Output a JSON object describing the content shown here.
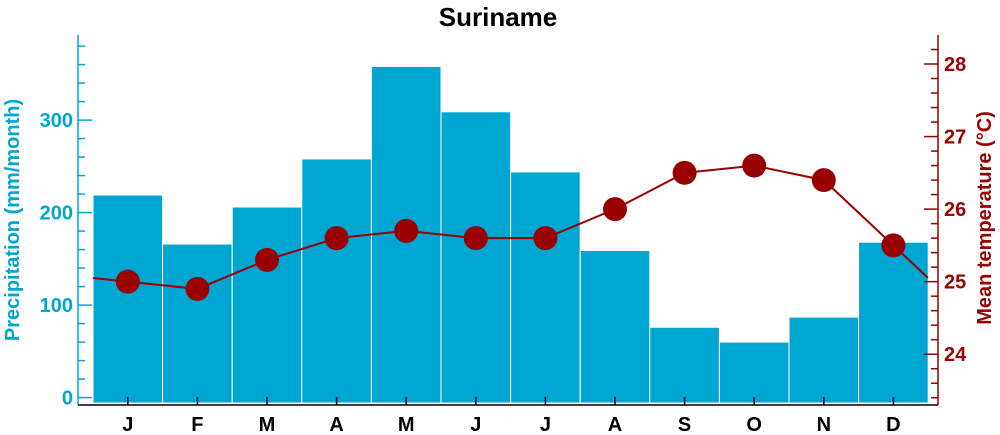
{
  "chart_data": {
    "type": "bar",
    "title": "Suriname",
    "categories": [
      "J",
      "F",
      "M",
      "A",
      "M",
      "J",
      "J",
      "A",
      "S",
      "O",
      "N",
      "D"
    ],
    "series": [
      {
        "name": "Precipitation",
        "kind": "bar",
        "axis": "left",
        "color": "#00a6d2",
        "values": [
          219,
          166,
          206,
          258,
          358,
          309,
          244,
          159,
          76,
          60,
          87,
          168
        ]
      },
      {
        "name": "Mean temperature",
        "kind": "line",
        "axis": "right",
        "color": "#990000",
        "values": [
          25.0,
          24.9,
          25.3,
          25.6,
          25.7,
          25.6,
          25.6,
          26.0,
          26.5,
          26.6,
          26.4,
          25.5
        ]
      }
    ],
    "y_left": {
      "label": "Precipitation (mm/month)",
      "ticks": [
        0,
        100,
        200,
        300
      ],
      "range": [
        -8,
        392
      ],
      "color": "#00a6d2"
    },
    "y_right": {
      "label": "Mean temperature (°C)",
      "ticks": [
        24,
        25,
        26,
        27,
        28
      ],
      "range": [
        23.3,
        28.4
      ],
      "color": "#990000"
    },
    "grid": false,
    "legend": "none"
  }
}
